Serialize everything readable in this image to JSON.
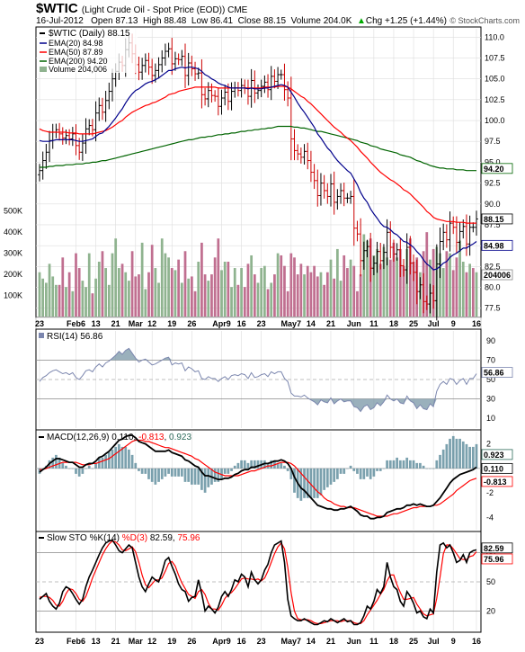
{
  "header": {
    "symbol": "$WTIC",
    "description": "(Light Crude Oil - Spot Price (EOD)) CME",
    "date": "16-Jul-2012",
    "open": "Open 87.13",
    "high": "High 88.48",
    "low": "Low 86.41",
    "close": "Close 88.15",
    "volume": "Volume 204.0K",
    "chg": "Chg +1.25 (+1.44%)",
    "chg_arrow": "▲",
    "credit": "© StockCharts.com"
  },
  "colors": {
    "up_bar": "#000000",
    "down_bar": "#cc0000",
    "ema20": "#00008b",
    "ema50": "#ff0000",
    "ema200": "#006400",
    "vol_up": "#8fb38f",
    "vol_down": "#c06f90",
    "rsi_line": "#7b86ae",
    "rsi_fill": "#6f8fa0",
    "stoch_k": "#000000",
    "stoch_d": "#ff0000"
  },
  "x_labels": [
    "23",
    "Feb6",
    "13",
    "21",
    "Mar",
    "12",
    "19",
    "26",
    "Apr9",
    "16",
    "23",
    "May7",
    "14",
    "21",
    "Jun",
    "11",
    "18",
    "25",
    "Jul",
    "9",
    "16"
  ],
  "legend": {
    "title": "$WTIC (Daily) 88.15",
    "ema20": "EMA(20) 84.98",
    "ema50": "EMA(50) 87.89",
    "ema200": "EMA(200) 94.20",
    "volume": "Volume 204,006"
  },
  "price_axis": [
    "110.0",
    "107.5",
    "105.0",
    "102.5",
    "100.0",
    "97.5",
    "95.0",
    "92.5",
    "90.0",
    "87.5",
    "85.0",
    "82.5",
    "80.0",
    "77.5"
  ],
  "volume_axis": [
    "500K",
    "400K",
    "300K",
    "200K",
    "100K"
  ],
  "price_tags": {
    "last": "88.15",
    "ema200": "94.20",
    "ema20": "84.98",
    "volume": "204006"
  },
  "rsi": {
    "label": "RSI(14) 56.86",
    "axis": [
      "90",
      "70",
      "50",
      "30",
      "10"
    ],
    "tag": "56.86"
  },
  "macd": {
    "label": "MACD(12,26,9)",
    "v1": "0.110",
    "v2": "-0.813",
    "v3": "0.923",
    "axis": [
      "2",
      "0",
      "-2",
      "-4"
    ],
    "tags": [
      "0.923",
      "0.110",
      "-0.813"
    ]
  },
  "stoch": {
    "label_k": "Slow STO %K(14)",
    "label_d": "%D(3)",
    "v1": "82.59",
    "v2": "75.96",
    "axis": [
      "80",
      "50",
      "20"
    ],
    "tags": [
      "82.59",
      "75.96"
    ]
  },
  "chart_data": {
    "type": "line",
    "ylim": [
      76.5,
      111
    ],
    "close": [
      94.0,
      95.2,
      96.2,
      97.6,
      98.6,
      98.9,
      98.4,
      97.9,
      98.2,
      97.8,
      98.4,
      97.0,
      96.2,
      97.3,
      99.0,
      99.4,
      98.9,
      100.9,
      101.8,
      101.0,
      102.4,
      103.5,
      105.0,
      105.9,
      107.0,
      106.6,
      108.5,
      109.3,
      108.0,
      106.7,
      105.8,
      106.6,
      107.2,
      106.4,
      105.4,
      106.0,
      106.7,
      107.5,
      108.3,
      108.6,
      106.8,
      107.4,
      107.3,
      107.7,
      105.4,
      106.9,
      106.2,
      105.6,
      105.7,
      103.1,
      102.6,
      103.6,
      103.0,
      102.9,
      101.7,
      102.7,
      103.4,
      102.3,
      103.5,
      103.9,
      103.6,
      104.2,
      103.9,
      102.9,
      104.8,
      103.3,
      103.6,
      104.1,
      104.6,
      103.7,
      105.3,
      104.7,
      105.5,
      105.5,
      103.7,
      102.7,
      97.8,
      96.4,
      96.0,
      95.6,
      96.3,
      95.2,
      93.8,
      92.8,
      91.0,
      92.5,
      91.6,
      90.9,
      92.4,
      90.2,
      90.9,
      91.6,
      90.7,
      90.7,
      90.9,
      87.1,
      86.4,
      83.2,
      84.4,
      84.9,
      82.3,
      82.9,
      84.3,
      83.2,
      84.2,
      86.6,
      84.8,
      84.0,
      84.5,
      82.6,
      82.1,
      84.8,
      82.9,
      81.8,
      79.5,
      80.3,
      78.3,
      78.0,
      79.3,
      78.4,
      82.8,
      85.5,
      86.6,
      85.7,
      87.7,
      87.2,
      85.4,
      86.7,
      87.3,
      85.2,
      87.2,
      87.2,
      88.2
    ],
    "ema20": [
      97.6,
      97.5,
      97.5,
      97.5,
      97.6,
      97.7,
      97.7,
      97.7,
      97.7,
      97.7,
      97.7,
      97.6,
      97.5,
      97.5,
      97.6,
      97.7,
      97.8,
      98.1,
      98.4,
      98.5,
      98.9,
      99.3,
      99.8,
      100.3,
      100.9,
      101.4,
      102.1,
      102.7,
      103.2,
      103.6,
      103.8,
      104.1,
      104.4,
      104.6,
      104.7,
      104.9,
      105.1,
      105.4,
      105.7,
      106.0,
      106.0,
      106.2,
      106.3,
      106.4,
      106.3,
      106.4,
      106.4,
      106.3,
      106.2,
      105.9,
      105.5,
      105.3,
      105.0,
      104.8,
      104.5,
      104.3,
      104.2,
      104.0,
      103.9,
      103.9,
      103.9,
      103.9,
      103.9,
      103.8,
      103.9,
      103.8,
      103.8,
      103.8,
      103.9,
      103.9,
      104.0,
      104.1,
      104.2,
      104.3,
      104.2,
      104.0,
      103.4,
      102.8,
      102.1,
      101.5,
      101.0,
      100.4,
      99.8,
      99.2,
      98.4,
      97.9,
      97.3,
      96.7,
      96.3,
      95.7,
      95.2,
      94.8,
      94.4,
      94.0,
      93.7,
      93.0,
      92.3,
      91.4,
      90.7,
      90.2,
      89.4,
      88.8,
      88.3,
      87.7,
      87.3,
      87.2,
      86.9,
      86.5,
      86.3,
      85.9,
      85.5,
      85.4,
      85.1,
      84.8,
      84.3,
      83.9,
      83.3,
      82.8,
      82.5,
      82.1,
      82.2,
      82.5,
      82.9,
      83.1,
      83.6,
      83.9,
      84.1,
      84.4,
      84.7,
      84.7,
      85.0,
      85.2,
      85.5
    ],
    "ema50": [
      99.0,
      98.8,
      98.7,
      98.6,
      98.6,
      98.6,
      98.6,
      98.6,
      98.6,
      98.5,
      98.5,
      98.5,
      98.4,
      98.4,
      98.4,
      98.4,
      98.4,
      98.5,
      98.6,
      98.7,
      98.8,
      99.0,
      99.2,
      99.5,
      99.8,
      100.0,
      100.4,
      100.7,
      101.0,
      101.2,
      101.4,
      101.6,
      101.8,
      101.9,
      102.1,
      102.2,
      102.4,
      102.6,
      102.8,
      103.1,
      103.2,
      103.3,
      103.5,
      103.6,
      103.7,
      103.8,
      103.9,
      104.0,
      104.0,
      104.0,
      104.0,
      104.0,
      104.0,
      104.0,
      103.9,
      103.9,
      103.9,
      103.9,
      103.9,
      103.9,
      103.9,
      103.9,
      103.9,
      103.9,
      103.9,
      103.9,
      103.9,
      103.9,
      104.0,
      104.0,
      104.0,
      104.0,
      104.1,
      104.1,
      104.1,
      104.0,
      103.8,
      103.5,
      103.2,
      102.9,
      102.7,
      102.3,
      102.0,
      101.6,
      101.2,
      100.8,
      100.4,
      100.0,
      99.6,
      99.2,
      98.9,
      98.6,
      98.2,
      97.9,
      97.6,
      97.2,
      96.8,
      96.3,
      95.9,
      95.5,
      95.0,
      94.6,
      94.2,
      93.8,
      93.5,
      93.2,
      92.9,
      92.7,
      92.4,
      92.1,
      91.7,
      91.5,
      91.2,
      90.8,
      90.4,
      90.0,
      89.6,
      89.1,
      88.8,
      88.4,
      88.2,
      88.1,
      88.0,
      87.9,
      87.9,
      87.9,
      87.8,
      87.8,
      87.8,
      87.7,
      87.7,
      87.7,
      87.7
    ],
    "ema200": [
      94.4,
      94.4,
      94.4,
      94.5,
      94.5,
      94.6,
      94.6,
      94.6,
      94.7,
      94.7,
      94.7,
      94.8,
      94.8,
      94.8,
      94.9,
      94.9,
      95.0,
      95.0,
      95.1,
      95.2,
      95.2,
      95.3,
      95.4,
      95.5,
      95.6,
      95.7,
      95.8,
      95.9,
      96.0,
      96.1,
      96.2,
      96.3,
      96.4,
      96.5,
      96.6,
      96.7,
      96.8,
      96.9,
      97.0,
      97.1,
      97.2,
      97.3,
      97.4,
      97.5,
      97.6,
      97.7,
      97.7,
      97.8,
      97.9,
      98.0,
      98.0,
      98.1,
      98.1,
      98.2,
      98.3,
      98.3,
      98.4,
      98.4,
      98.5,
      98.5,
      98.6,
      98.7,
      98.7,
      98.8,
      98.8,
      98.9,
      98.9,
      99.0,
      99.0,
      99.1,
      99.1,
      99.2,
      99.3,
      99.3,
      99.3,
      99.3,
      99.3,
      99.2,
      99.2,
      99.1,
      99.1,
      99.0,
      98.9,
      98.8,
      98.7,
      98.7,
      98.6,
      98.5,
      98.4,
      98.3,
      98.2,
      98.1,
      98.0,
      97.9,
      97.8,
      97.7,
      97.6,
      97.4,
      97.3,
      97.2,
      97.0,
      96.9,
      96.8,
      96.6,
      96.5,
      96.4,
      96.3,
      96.2,
      96.1,
      95.9,
      95.8,
      95.7,
      95.6,
      95.4,
      95.2,
      95.1,
      94.9,
      94.8,
      94.6,
      94.5,
      94.4,
      94.3,
      94.3,
      94.2,
      94.2,
      94.2,
      94.1,
      94.1,
      94.1,
      94.0,
      94.0,
      94.0,
      94.0
    ],
    "volume": [
      210,
      180,
      160,
      250,
      190,
      150,
      150,
      280,
      140,
      210,
      120,
      300,
      230,
      170,
      140,
      300,
      110,
      180,
      260,
      310,
      230,
      150,
      300,
      370,
      230,
      250,
      210,
      170,
      310,
      190,
      200,
      350,
      130,
      210,
      340,
      230,
      160,
      370,
      300,
      280,
      230,
      220,
      270,
      160,
      310,
      180,
      190,
      120,
      260,
      350,
      200,
      170,
      200,
      280,
      370,
      220,
      260,
      260,
      140,
      230,
      150,
      230,
      140,
      250,
      290,
      200,
      160,
      230,
      240,
      130,
      160,
      200,
      300,
      290,
      240,
      120,
      300,
      280,
      200,
      250,
      200,
      240,
      210,
      240,
      190,
      210,
      150,
      210,
      270,
      180,
      320,
      170,
      290,
      230,
      270,
      240,
      120,
      200,
      390,
      360,
      370,
      290,
      320,
      250,
      330,
      280,
      270,
      350,
      280,
      320,
      240,
      320,
      370,
      260,
      280,
      210,
      310,
      400,
      270,
      320,
      330,
      300,
      230,
      310,
      300,
      220,
      280,
      360,
      260,
      210,
      250,
      230,
      210
    ],
    "volume_up": [
      1,
      1,
      1,
      1,
      1,
      1,
      0,
      0,
      1,
      0,
      1,
      0,
      0,
      1,
      1,
      1,
      0,
      1,
      1,
      0,
      1,
      1,
      1,
      1,
      1,
      0,
      1,
      1,
      0,
      0,
      0,
      1,
      1,
      0,
      0,
      1,
      1,
      1,
      1,
      1,
      0,
      1,
      0,
      1,
      0,
      1,
      0,
      0,
      1,
      0,
      0,
      1,
      0,
      0,
      0,
      1,
      1,
      0,
      1,
      1,
      0,
      1,
      0,
      0,
      1,
      0,
      1,
      1,
      1,
      0,
      1,
      0,
      1,
      0,
      0,
      0,
      0,
      0,
      0,
      0,
      1,
      0,
      0,
      0,
      0,
      1,
      0,
      0,
      1,
      0,
      1,
      1,
      0,
      0,
      1,
      0,
      0,
      0,
      1,
      1,
      0,
      1,
      1,
      0,
      1,
      1,
      0,
      0,
      1,
      0,
      0,
      1,
      0,
      0,
      0,
      1,
      0,
      0,
      1,
      0,
      1,
      1,
      1,
      0,
      1,
      0,
      0,
      1,
      1,
      0,
      1,
      0,
      1
    ],
    "rsi": [
      48,
      52,
      54,
      57,
      59,
      60,
      58,
      56,
      57,
      55,
      57,
      52,
      50,
      54,
      59,
      60,
      58,
      63,
      66,
      63,
      67,
      69,
      72,
      75,
      79,
      76,
      80,
      82,
      77,
      72,
      68,
      70,
      71,
      68,
      65,
      66,
      68,
      70,
      72,
      73,
      65,
      67,
      66,
      67,
      59,
      63,
      61,
      58,
      59,
      51,
      50,
      53,
      51,
      51,
      48,
      51,
      53,
      50,
      54,
      55,
      54,
      56,
      55,
      51,
      57,
      52,
      53,
      55,
      56,
      53,
      58,
      56,
      58,
      58,
      51,
      48,
      36,
      33,
      33,
      32,
      34,
      31,
      29,
      27,
      24,
      29,
      27,
      26,
      31,
      25,
      28,
      30,
      27,
      28,
      28,
      22,
      21,
      17,
      22,
      24,
      19,
      21,
      26,
      23,
      27,
      34,
      30,
      28,
      30,
      26,
      25,
      33,
      28,
      26,
      20,
      24,
      20,
      19,
      25,
      22,
      38,
      45,
      48,
      45,
      51,
      50,
      45,
      49,
      51,
      45,
      51,
      51,
      56
    ],
    "macd": [
      -0.3,
      -0.1,
      0.1,
      0.4,
      0.6,
      0.8,
      0.8,
      0.7,
      0.6,
      0.5,
      0.5,
      0.3,
      0.1,
      0.1,
      0.3,
      0.4,
      0.4,
      0.6,
      0.9,
      1.0,
      1.2,
      1.4,
      1.7,
      2.0,
      2.3,
      2.4,
      2.6,
      2.7,
      2.7,
      2.5,
      2.2,
      2.1,
      2.0,
      1.8,
      1.6,
      1.4,
      1.4,
      1.4,
      1.4,
      1.5,
      1.3,
      1.2,
      1.1,
      1.0,
      0.7,
      0.6,
      0.4,
      0.2,
      0.1,
      -0.3,
      -0.6,
      -0.6,
      -0.7,
      -0.8,
      -0.9,
      -0.9,
      -0.8,
      -0.8,
      -0.7,
      -0.5,
      -0.4,
      -0.2,
      -0.1,
      -0.1,
      0.1,
      0.1,
      0.2,
      0.3,
      0.4,
      0.4,
      0.5,
      0.6,
      0.6,
      0.7,
      0.6,
      0.4,
      0.0,
      -0.7,
      -1.2,
      -1.6,
      -1.8,
      -2.1,
      -2.4,
      -2.7,
      -3.0,
      -3.1,
      -3.2,
      -3.3,
      -3.3,
      -3.4,
      -3.4,
      -3.3,
      -3.3,
      -3.2,
      -3.1,
      -3.3,
      -3.5,
      -3.8,
      -3.9,
      -3.9,
      -4.1,
      -4.1,
      -4.0,
      -4.0,
      -3.9,
      -3.6,
      -3.5,
      -3.4,
      -3.3,
      -3.3,
      -3.2,
      -3.0,
      -3.0,
      -2.9,
      -3.0,
      -2.9,
      -3.0,
      -3.1,
      -3.1,
      -3.0,
      -2.7,
      -2.4,
      -2.0,
      -1.6,
      -1.2,
      -0.9,
      -0.7,
      -0.5,
      -0.4,
      -0.3,
      -0.2,
      -0.1,
      0.1
    ],
    "macd_signal": [
      -0.1,
      -0.1,
      0.0,
      0.1,
      0.2,
      0.3,
      0.4,
      0.5,
      0.5,
      0.5,
      0.5,
      0.5,
      0.4,
      0.3,
      0.3,
      0.3,
      0.4,
      0.4,
      0.5,
      0.6,
      0.7,
      0.8,
      1.0,
      1.2,
      1.4,
      1.6,
      1.8,
      2.0,
      2.2,
      2.3,
      2.3,
      2.3,
      2.2,
      2.2,
      2.1,
      2.0,
      1.9,
      1.8,
      1.7,
      1.7,
      1.6,
      1.5,
      1.4,
      1.3,
      1.2,
      1.1,
      1.0,
      0.8,
      0.7,
      0.5,
      0.3,
      0.1,
      -0.1,
      -0.3,
      -0.4,
      -0.5,
      -0.6,
      -0.6,
      -0.6,
      -0.6,
      -0.6,
      -0.5,
      -0.4,
      -0.3,
      -0.2,
      -0.2,
      -0.1,
      0.0,
      0.1,
      0.2,
      0.2,
      0.3,
      0.4,
      0.5,
      0.5,
      0.5,
      0.4,
      0.2,
      -0.1,
      -0.4,
      -0.7,
      -1.0,
      -1.3,
      -1.6,
      -1.9,
      -2.1,
      -2.4,
      -2.6,
      -2.7,
      -2.9,
      -3.0,
      -3.1,
      -3.1,
      -3.2,
      -3.2,
      -3.2,
      -3.3,
      -3.4,
      -3.5,
      -3.6,
      -3.7,
      -3.8,
      -3.9,
      -3.9,
      -3.9,
      -3.9,
      -3.8,
      -3.7,
      -3.7,
      -3.6,
      -3.5,
      -3.4,
      -3.3,
      -3.2,
      -3.2,
      -3.1,
      -3.1,
      -3.1,
      -3.1,
      -3.0,
      -3.0,
      -2.9,
      -2.7,
      -2.5,
      -2.3,
      -2.1,
      -1.8,
      -1.6,
      -1.4,
      -1.2,
      -1.0,
      -0.9,
      -0.8
    ],
    "stoch_k": [
      32,
      35,
      38,
      30,
      25,
      22,
      28,
      40,
      45,
      43,
      38,
      32,
      27,
      32,
      45,
      55,
      62,
      70,
      78,
      85,
      90,
      92,
      93,
      88,
      82,
      80,
      84,
      88,
      85,
      70,
      55,
      45,
      40,
      48,
      55,
      52,
      50,
      60,
      72,
      75,
      66,
      58,
      48,
      42,
      40,
      30,
      34,
      35,
      52,
      38,
      20,
      25,
      22,
      18,
      24,
      35,
      40,
      35,
      42,
      52,
      50,
      58,
      55,
      45,
      60,
      52,
      48,
      52,
      62,
      68,
      80,
      88,
      90,
      92,
      70,
      32,
      15,
      12,
      10,
      10,
      12,
      10,
      8,
      6,
      6,
      8,
      10,
      9,
      12,
      10,
      8,
      10,
      12,
      9,
      10,
      6,
      6,
      8,
      15,
      25,
      22,
      30,
      42,
      38,
      45,
      70,
      55,
      45,
      42,
      30,
      25,
      40,
      35,
      28,
      18,
      20,
      14,
      12,
      22,
      18,
      60,
      88,
      90,
      85,
      88,
      80,
      70,
      72,
      78,
      70,
      80,
      82,
      83
    ],
    "stoch_d": [
      34,
      35,
      35,
      34,
      31,
      26,
      25,
      30,
      38,
      43,
      42,
      38,
      32,
      30,
      35,
      44,
      54,
      62,
      70,
      78,
      84,
      89,
      92,
      91,
      88,
      83,
      82,
      84,
      86,
      81,
      70,
      57,
      47,
      44,
      48,
      52,
      52,
      54,
      61,
      69,
      71,
      66,
      57,
      49,
      43,
      37,
      35,
      33,
      40,
      42,
      37,
      28,
      22,
      22,
      21,
      26,
      33,
      37,
      39,
      43,
      48,
      53,
      54,
      53,
      53,
      52,
      53,
      51,
      54,
      61,
      70,
      79,
      86,
      90,
      84,
      65,
      39,
      20,
      12,
      11,
      11,
      11,
      10,
      8,
      7,
      7,
      8,
      9,
      10,
      10,
      10,
      9,
      10,
      10,
      10,
      8,
      7,
      7,
      10,
      16,
      21,
      26,
      31,
      37,
      42,
      51,
      57,
      57,
      47,
      39,
      32,
      32,
      33,
      34,
      27,
      22,
      17,
      15,
      16,
      17,
      33,
      55,
      79,
      88,
      88,
      84,
      79,
      74,
      73,
      73,
      76,
      77,
      81
    ]
  }
}
